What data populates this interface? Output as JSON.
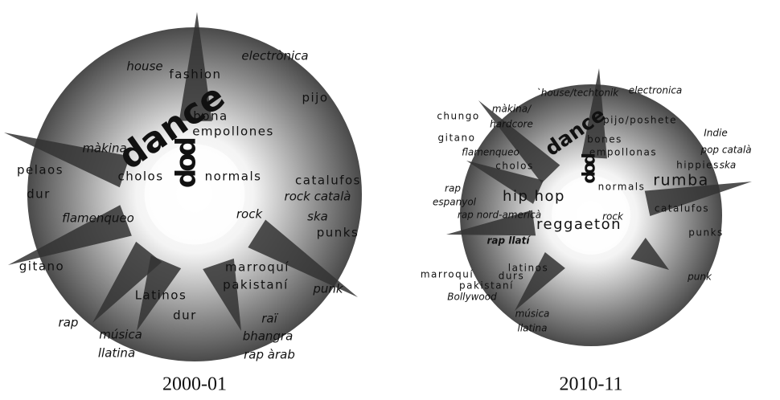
{
  "panels": [
    {
      "caption": "2000-01",
      "labels": [
        "house",
        "fashion",
        "electrònica",
        "pijo",
        "dance",
        "bona",
        "empollones",
        "pop",
        "màkina",
        "cholos",
        "normals",
        "pelaos",
        "dur",
        "catalufos",
        "rock català",
        "ska",
        "punks",
        "rock",
        "flamenqueo",
        "gitano",
        "marroquí",
        "pakistaní",
        "Latinos",
        "dur",
        "punk",
        "raï",
        "bhangra",
        "rap àrab",
        "rap",
        "música",
        "llatina"
      ]
    },
    {
      "caption": "2010-11",
      "labels": [
        "`house/techtonik",
        "electronica",
        "chungo",
        "màkina/",
        "hardcore",
        "dance",
        "pijo/poshete",
        "gitano",
        "bones",
        "empollonas",
        "Indie",
        "pop català",
        "ska",
        "flamenqueo",
        "pop",
        "cholos",
        "hippies",
        "rumba",
        "rap",
        "espanyol",
        "hip hop",
        "normals",
        "rap nord-americà",
        "rock",
        "reggaeton",
        "catalufos",
        "punks",
        "rap llatí",
        "latinos",
        "marroquí",
        "durs",
        "pakistaní",
        "Bollywood",
        "punk",
        "música",
        "llatina"
      ]
    }
  ]
}
